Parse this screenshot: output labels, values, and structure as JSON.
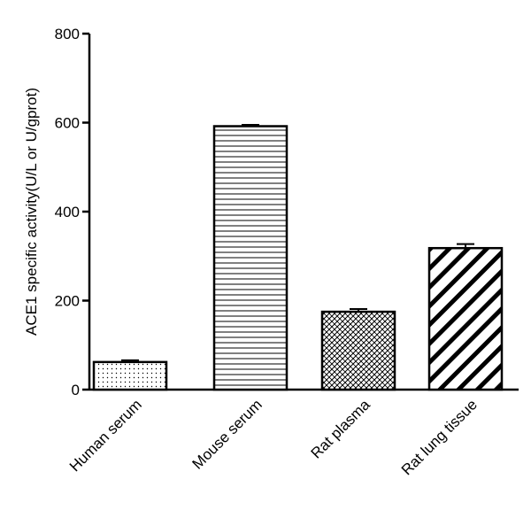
{
  "chart_data": {
    "type": "bar",
    "title": "",
    "xlabel": "",
    "ylabel": "ACE1 specific activity(U/L or U/gprot)",
    "categories": [
      "Human serum",
      "Mouse serum",
      "Rat plasma",
      "Rat lung tissue"
    ],
    "values": [
      62,
      592,
      175,
      318
    ],
    "errors": [
      4,
      3,
      6,
      9
    ],
    "patterns": [
      "dots",
      "horizontal-lines",
      "crosshatch",
      "diagonal-stripes"
    ],
    "ylim": [
      0,
      800
    ],
    "yticks": [
      0,
      200,
      400,
      600,
      800
    ],
    "grid": false,
    "legend": "none",
    "colors": {
      "bar_stroke": "#000000",
      "bar_fill": "#ffffff"
    }
  }
}
